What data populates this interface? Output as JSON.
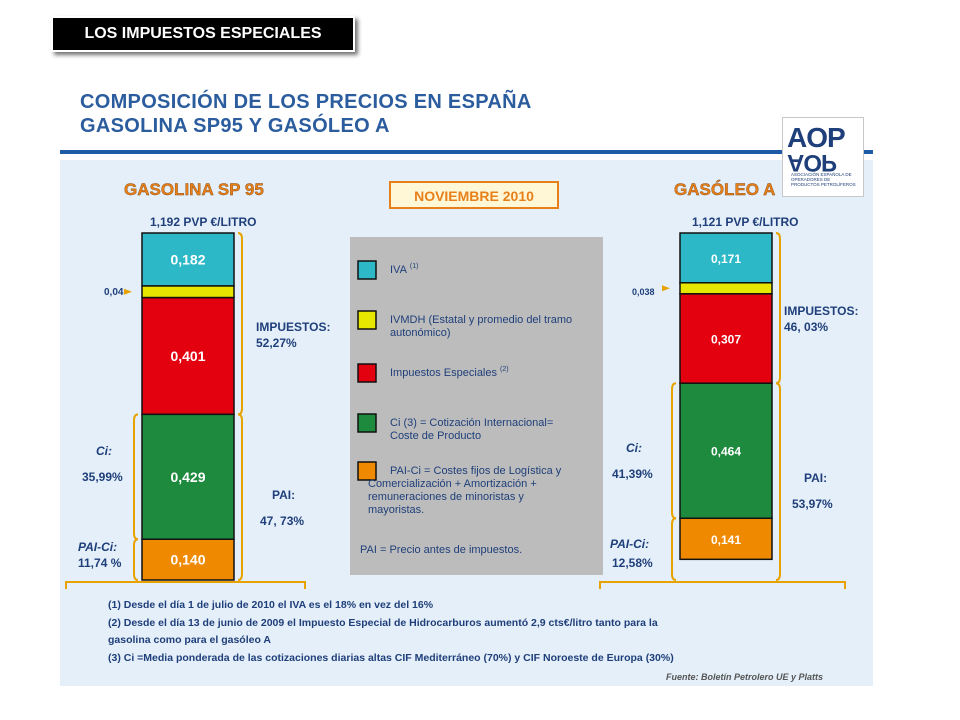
{
  "slide_tag": "LOS IMPUESTOS ESPECIALES",
  "title_line1": "COMPOSICIÓN DE LOS PRECIOS EN ESPAÑA",
  "title_line2": "GASOLINA SP95 Y GASÓLEO A",
  "date_label": "NOVIEMBRE 2010",
  "logo": {
    "text": "AOP",
    "subtitle": "ASOCIACIÓN ESPAÑOLA DE OPERADORES DE PRODUCTOS PETROLÍFEROS"
  },
  "colors": {
    "iva": "#2db8c8",
    "ivmdh": "#e6e600",
    "ie": "#e3000f",
    "ci": "#1e8a3e",
    "paici": "#ef8a00",
    "title": "#2b5d9e",
    "heading": "#e8801a"
  },
  "chart_data": {
    "type": "bar",
    "stacked": true,
    "unit": "€/litro",
    "categories": [
      "GASOLINA SP 95",
      "GASÓLEO A"
    ],
    "totals": [
      "1,192 PVP €/LITRO",
      "1,121 PVP €/LITRO"
    ],
    "series": [
      {
        "name": "IVA",
        "key": "iva",
        "values": [
          0.182,
          0.171
        ],
        "labels": [
          "0,182",
          "0,171"
        ]
      },
      {
        "name": "IVMDH",
        "key": "ivmdh",
        "values": [
          0.04,
          0.038
        ],
        "labels": [
          "0,04",
          "0,038"
        ]
      },
      {
        "name": "Impuestos Especiales",
        "key": "ie",
        "values": [
          0.401,
          0.307
        ],
        "labels": [
          "0,401",
          "0,307"
        ]
      },
      {
        "name": "Ci",
        "key": "ci",
        "values": [
          0.429,
          0.464
        ],
        "labels": [
          "0,429",
          "0,464"
        ]
      },
      {
        "name": "PAI-Ci",
        "key": "paici",
        "values": [
          0.14,
          0.141
        ],
        "labels": [
          "0,140",
          "0,141"
        ]
      }
    ],
    "annotations": {
      "impuestos_label": "IMPUESTOS:",
      "impuestos_pct": [
        "52,27%",
        "46, 03%"
      ],
      "pai_label": "PAI:",
      "pai_pct": [
        "47, 73%",
        "53,97%"
      ],
      "ci_label": "Ci:",
      "ci_pct": [
        "35,99%",
        "41,39%"
      ],
      "paici_label": "PAI-Ci:",
      "paici_pct": [
        "11,74 %",
        "12,58%"
      ]
    },
    "legend": [
      {
        "key": "iva",
        "text": "IVA",
        "sup": "(1)"
      },
      {
        "key": "ivmdh",
        "text": "IVMDH (Estatal y promedio del tramo autonómico)",
        "sup": ""
      },
      {
        "key": "ie",
        "text": "Impuestos Especiales",
        "sup": "(2)"
      },
      {
        "key": "ci",
        "text": "Ci (3) = Cotización Internacional= Coste de Producto",
        "sup": ""
      },
      {
        "key": "paici",
        "text": "PAI-Ci = Costes fijos de Logística y Comercialización + Amortización + remuneraciones de minoristas y mayoristas.",
        "sup": ""
      }
    ],
    "legend_note": "PAI  =  Precio antes de impuestos."
  },
  "footnotes": [
    "(1) Desde el día 1 de julio de 2010 el IVA es el 18% en vez del 16%",
    "(2) Desde el día 13 de junio de 2009 el Impuesto Especial de Hidrocarburos aumentó 2,9 cts€/litro tanto para la gasolina como para el gasóleo A",
    "(3) Ci =Media ponderada de las cotizaciones diarias altas CIF Mediterráneo (70%) y CIF Noroeste de Europa (30%)"
  ],
  "source": "Fuente: Boletín Petrolero UE y Platts"
}
